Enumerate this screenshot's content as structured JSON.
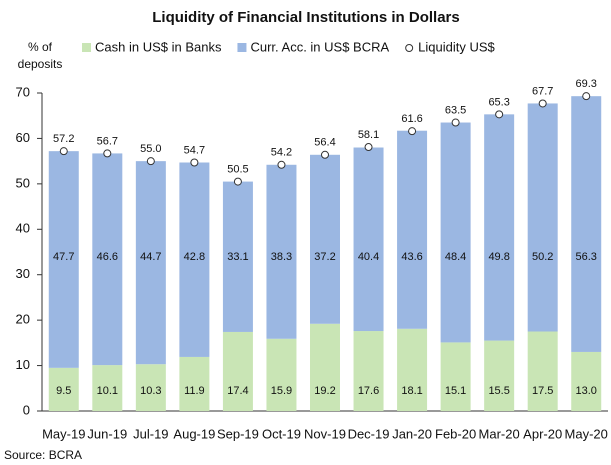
{
  "chart_data": {
    "type": "bar",
    "stacked": true,
    "title": "Liquidity of Financial Institutions in Dollars",
    "ylabel": [
      "% of",
      "deposits"
    ],
    "source": "Source: BCRA",
    "categories": [
      "May-19",
      "Jun-19",
      "Jul-19",
      "Aug-19",
      "Sep-19",
      "Oct-19",
      "Nov-19",
      "Dec-19",
      "Jan-20",
      "Feb-20",
      "Mar-20",
      "Apr-20",
      "May-20"
    ],
    "series": [
      {
        "name": "Cash in US$ in Banks",
        "color": "#c9e5b5",
        "values": [
          9.5,
          10.1,
          10.3,
          11.9,
          17.4,
          15.9,
          19.2,
          17.6,
          18.1,
          15.1,
          15.5,
          17.5,
          13.0
        ],
        "value_labels": [
          "9.5",
          "10.1",
          "10.3",
          "11.9",
          "17.4",
          "15.9",
          "19.2",
          "17.6",
          "18.1",
          "15.1",
          "15.5",
          "17.5",
          "13.0"
        ]
      },
      {
        "name": "Curr. Acc. in US$ BCRA",
        "color": "#9bb7e2",
        "values": [
          47.7,
          46.6,
          44.7,
          42.8,
          33.1,
          38.3,
          37.2,
          40.4,
          43.6,
          48.4,
          49.8,
          50.2,
          56.3
        ],
        "value_labels": [
          "47.7",
          "46.6",
          "44.7",
          "42.8",
          "33.1",
          "38.3",
          "37.2",
          "40.4",
          "43.6",
          "48.4",
          "49.8",
          "50.2",
          "56.3"
        ]
      },
      {
        "name": "Liquidity US$",
        "type": "scatter",
        "color": "#ffffff",
        "values": [
          57.2,
          56.7,
          55.0,
          54.7,
          50.5,
          54.2,
          56.4,
          58.1,
          61.6,
          63.5,
          65.3,
          67.7,
          69.3
        ],
        "value_labels": [
          "57.2",
          "56.7",
          "55.0",
          "54.7",
          "50.5",
          "54.2",
          "56.4",
          "58.1",
          "61.6",
          "63.5",
          "65.3",
          "67.7",
          "69.3"
        ]
      }
    ],
    "ylim": [
      0,
      70
    ],
    "yticks": [
      0,
      10,
      20,
      30,
      40,
      50,
      60,
      70
    ],
    "grid": false,
    "legend": "top"
  }
}
